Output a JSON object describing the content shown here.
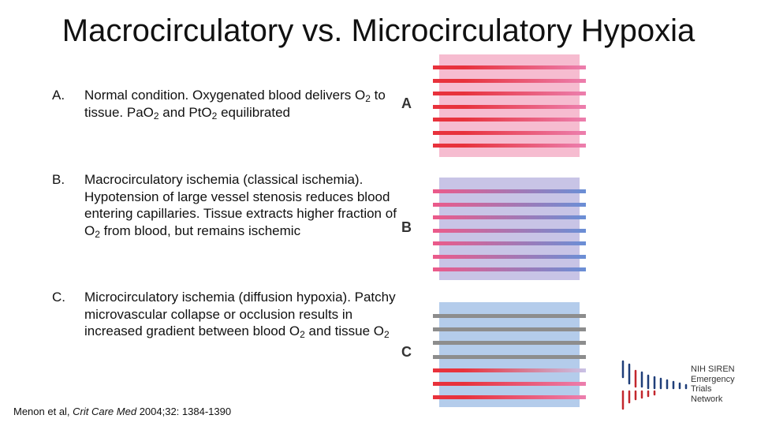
{
  "title": "Macrocirculatory vs. Microcirculatory Hypoxia",
  "items": [
    {
      "letter": "A.",
      "parts": [
        "Normal condition.  Oxygenated blood delivers O",
        "2",
        " to tissue.  PaO",
        "2",
        " and PtO",
        "2",
        " equilibrated"
      ]
    },
    {
      "letter": "B.",
      "parts": [
        "Macrocirculatory ischemia (classical ischemia).  Hypotension of large vessel stenosis reduces blood entering capillaries. Tissue extracts higher fraction of O",
        "2",
        " from blood, but remains ischemic"
      ]
    },
    {
      "letter": "C.",
      "parts": [
        "Microcirculatory ischemia (diffusion hypoxia). Patchy microvascular collapse or occlusion results in increased gradient between blood O",
        "2",
        " and tissue O",
        "2",
        ""
      ]
    }
  ],
  "panels": [
    {
      "label": "A",
      "background": "#f6bcd0",
      "stripe_colors": [
        "#e8323c",
        "#ec7fae"
      ],
      "stripes": [
        "red-pink",
        "red-pink",
        "red-pink",
        "red-pink",
        "red-pink",
        "red-pink",
        "red-pink"
      ]
    },
    {
      "label": "B",
      "background": "#c8c4e6",
      "stripe_colors": [
        "#ec5a8a",
        "#6a8fd6"
      ],
      "stripes": [
        "pink-blue",
        "pink-blue",
        "pink-blue",
        "pink-blue",
        "pink-blue",
        "pink-blue",
        "pink-blue"
      ]
    },
    {
      "label": "C",
      "background": "#b4cceb",
      "stripe_colors": [
        "#8d8d8d",
        "#e8323c",
        "#c9c2e6"
      ],
      "stripes": [
        "gray",
        "gray",
        "gray",
        "gray",
        "red-lavender",
        "red-pink",
        "red-pink"
      ]
    }
  ],
  "citation": {
    "prefix": "Menon et al, ",
    "journal": "Crit Care Med",
    "suffix": " 2004;32: 1384-1390"
  },
  "logo": {
    "lines": [
      "NIH SIREN",
      "Emergency",
      "Trials",
      "Network"
    ],
    "colors": [
      "#1f3e79",
      "#c2272d"
    ]
  }
}
